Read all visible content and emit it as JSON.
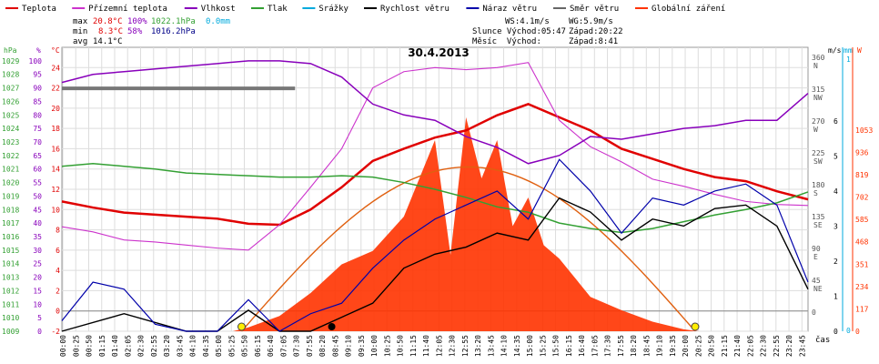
{
  "chart_data": {
    "type": "line",
    "title": "30.4.2013",
    "legend": [
      {
        "name": "Teplota",
        "color": "#e00000"
      },
      {
        "name": "Přízemní teplota",
        "color": "#cc33cc"
      },
      {
        "name": "Vlhkost",
        "color": "#8800bb"
      },
      {
        "name": "Tlak",
        "color": "#33a033"
      },
      {
        "name": "Srážky",
        "color": "#00aadd"
      },
      {
        "name": "Rychlost větru",
        "color": "#000000"
      },
      {
        "name": "Náraz větru",
        "color": "#0000aa"
      },
      {
        "name": "Směr větru",
        "color": "#666666"
      },
      {
        "name": "Globální záření",
        "color": "#ff3300"
      }
    ],
    "stats": {
      "max_label": "max",
      "max_temp": "20.8°C",
      "max_hum": "100%",
      "max_press": "1022.1hPa",
      "rain": "0.0mm",
      "min_label": "min",
      "min_temp": "8.3°C",
      "min_hum": "58%",
      "min_press": "1016.2hPa",
      "avg_label": "avg",
      "avg_temp": "14.1°C"
    },
    "wind_info": {
      "ws": "WS:4.1m/s",
      "wg": "WG:5.9m/s",
      "sun_rise": "Slunce Východ:05:47",
      "sun_set": "Západ:20:22",
      "moon_rise": "Měsíc  Východ:",
      "moon_set": "Západ:8:41"
    },
    "axes": {
      "hpa": {
        "label": "hPa",
        "min": 1009,
        "max": 1030,
        "ticks": [
          1009,
          1010,
          1011,
          1012,
          1013,
          1014,
          1015,
          1016,
          1017,
          1018,
          1019,
          1020,
          1021,
          1022,
          1023,
          1024,
          1025,
          1026,
          1027,
          1028,
          1029
        ]
      },
      "percent": {
        "label": "%",
        "min": 0,
        "max": 105,
        "ticks": [
          0,
          5,
          10,
          15,
          20,
          25,
          30,
          35,
          40,
          45,
          50,
          55,
          60,
          65,
          70,
          75,
          80,
          85,
          90,
          95,
          100
        ]
      },
      "celsius": {
        "label": "°C",
        "min": -2,
        "max": 26,
        "ticks": [
          -2,
          0,
          2,
          4,
          6,
          8,
          10,
          12,
          14,
          16,
          18,
          20,
          22,
          24
        ]
      },
      "wind_dir": {
        "label": "m/s",
        "ticks": [
          {
            "deg": 360,
            "name": "N"
          },
          {
            "deg": 315,
            "name": "NW"
          },
          {
            "deg": 270,
            "name": "W"
          },
          {
            "deg": 225,
            "name": "SW"
          },
          {
            "deg": 180,
            "name": "S"
          },
          {
            "deg": 135,
            "name": "SE"
          },
          {
            "deg": 90,
            "name": "E"
          },
          {
            "deg": 45,
            "name": "NE"
          },
          {
            "deg": 0,
            "name": ""
          }
        ]
      },
      "wind_speed": {
        "min": 0,
        "max": 6,
        "ticks": [
          0,
          1,
          2,
          3,
          4,
          5,
          6
        ]
      },
      "rain_mm": {
        "label": "mm",
        "top": "1",
        "bottom": "0"
      },
      "radiation": {
        "label": "W",
        "min": 0,
        "max": 1170,
        "ticks": [
          0,
          117,
          234,
          351,
          468,
          585,
          702,
          819,
          936,
          1053
        ]
      },
      "time": {
        "label": "čas",
        "ticks": [
          "00:00",
          "00:25",
          "00:50",
          "01:15",
          "01:40",
          "02:05",
          "02:30",
          "02:55",
          "03:20",
          "03:45",
          "04:10",
          "04:35",
          "05:00",
          "05:25",
          "05:50",
          "06:15",
          "06:40",
          "07:05",
          "07:30",
          "07:55",
          "08:20",
          "08:45",
          "09:10",
          "09:35",
          "10:00",
          "10:25",
          "10:50",
          "11:15",
          "11:40",
          "12:05",
          "12:30",
          "12:55",
          "13:20",
          "13:45",
          "14:10",
          "14:35",
          "15:00",
          "15:25",
          "15:50",
          "16:15",
          "16:40",
          "17:05",
          "17:30",
          "17:55",
          "18:20",
          "18:45",
          "19:10",
          "19:35",
          "20:00",
          "20:25",
          "20:50",
          "21:15",
          "21:40",
          "22:05",
          "22:30",
          "22:55",
          "23:20",
          "23:45"
        ]
      }
    },
    "series": [
      {
        "name": "Teplota",
        "unit": "°C",
        "x_hours": [
          0,
          1,
          2,
          3,
          4,
          5,
          6,
          7,
          8,
          9,
          10,
          11,
          12,
          13,
          14,
          15,
          16,
          17,
          18,
          19,
          20,
          21,
          22,
          23,
          24
        ],
        "values": [
          10.8,
          10.2,
          9.7,
          9.5,
          9.3,
          9.1,
          8.6,
          8.5,
          10.0,
          12.2,
          14.8,
          16.0,
          17.1,
          17.8,
          19.3,
          20.4,
          19.1,
          17.8,
          16.0,
          15.0,
          14.0,
          13.2,
          12.8,
          11.8,
          11.0
        ]
      },
      {
        "name": "Přízemní teplota",
        "unit": "°C",
        "x_hours": [
          0,
          1,
          2,
          3,
          4,
          5,
          6,
          7,
          8,
          9,
          10,
          11,
          12,
          13,
          14,
          15,
          16,
          17,
          18,
          19,
          20,
          21,
          22,
          23,
          24
        ],
        "values": [
          8.3,
          7.8,
          7.0,
          6.8,
          6.5,
          6.2,
          6.0,
          8.5,
          12.2,
          16.0,
          22.0,
          23.6,
          24.0,
          23.8,
          24.0,
          24.5,
          18.8,
          16.2,
          14.7,
          13.0,
          12.3,
          11.5,
          10.8,
          10.5,
          10.4
        ]
      },
      {
        "name": "Vlhkost",
        "unit": "%",
        "x_hours": [
          0,
          1,
          2,
          3,
          4,
          5,
          6,
          7,
          8,
          9,
          10,
          11,
          12,
          13,
          14,
          15,
          16,
          17,
          18,
          19,
          20,
          21,
          22,
          23,
          24
        ],
        "values": [
          92,
          95,
          96,
          97,
          98,
          99,
          100,
          100,
          99,
          94,
          84,
          80,
          78,
          72,
          68,
          62,
          65,
          72,
          71,
          73,
          75,
          76,
          78,
          78,
          88
        ]
      },
      {
        "name": "Tlak",
        "unit": "hPa",
        "x_hours": [
          0,
          1,
          2,
          3,
          4,
          5,
          6,
          7,
          8,
          9,
          10,
          11,
          12,
          13,
          14,
          15,
          16,
          17,
          18,
          19,
          20,
          21,
          22,
          23,
          24
        ],
        "values": [
          1021.2,
          1021.4,
          1021.2,
          1021.0,
          1020.7,
          1020.6,
          1020.5,
          1020.4,
          1020.4,
          1020.5,
          1020.4,
          1020.0,
          1019.5,
          1018.9,
          1018.2,
          1017.8,
          1017.0,
          1016.6,
          1016.3,
          1016.6,
          1017.1,
          1017.6,
          1018.0,
          1018.5,
          1019.3
        ]
      },
      {
        "name": "Globální záření",
        "unit": "W/m²",
        "x_hours": [
          5.5,
          6,
          7,
          8,
          9,
          10,
          11,
          12,
          12.5,
          13,
          13.5,
          14,
          14.5,
          15,
          15.5,
          16,
          17,
          18,
          19,
          20,
          20.5
        ],
        "values": [
          0,
          20,
          80,
          200,
          350,
          420,
          600,
          1000,
          400,
          1120,
          800,
          1000,
          550,
          700,
          450,
          380,
          180,
          110,
          50,
          10,
          0
        ]
      },
      {
        "name": "Rychlost větru",
        "unit": "m/s",
        "x_hours": [
          0,
          2,
          4,
          5,
          6,
          7,
          8,
          9,
          10,
          11,
          12,
          13,
          14,
          15,
          16,
          17,
          18,
          19,
          20,
          21,
          22,
          23,
          24
        ],
        "values": [
          0,
          0.5,
          0,
          0,
          0.6,
          0,
          0,
          0.4,
          0.8,
          1.8,
          2.2,
          2.4,
          2.8,
          2.6,
          3.8,
          3.4,
          2.6,
          3.2,
          3.0,
          3.5,
          3.6,
          3.0,
          1.2
        ]
      },
      {
        "name": "Náraz větru",
        "unit": "m/s",
        "x_hours": [
          0,
          1,
          2,
          3,
          4,
          5,
          6,
          7,
          8,
          9,
          10,
          11,
          12,
          13,
          14,
          15,
          16,
          17,
          18,
          19,
          20,
          21,
          22,
          23,
          24
        ],
        "values": [
          0.3,
          1.4,
          1.2,
          0.2,
          0,
          0,
          0.9,
          0,
          0.5,
          0.8,
          1.8,
          2.6,
          3.2,
          3.6,
          4.0,
          3.2,
          4.9,
          4.0,
          2.8,
          3.8,
          3.6,
          4.0,
          4.2,
          3.6,
          1.4
        ]
      }
    ],
    "daylight_bar": {
      "name": "Směr větru",
      "value_deg": 320,
      "x_from_hours": 0,
      "x_to_hours": 7.5
    },
    "sun_markers_hours": [
      5.78,
      20.37
    ],
    "moon_marker_hours": 8.68
  }
}
